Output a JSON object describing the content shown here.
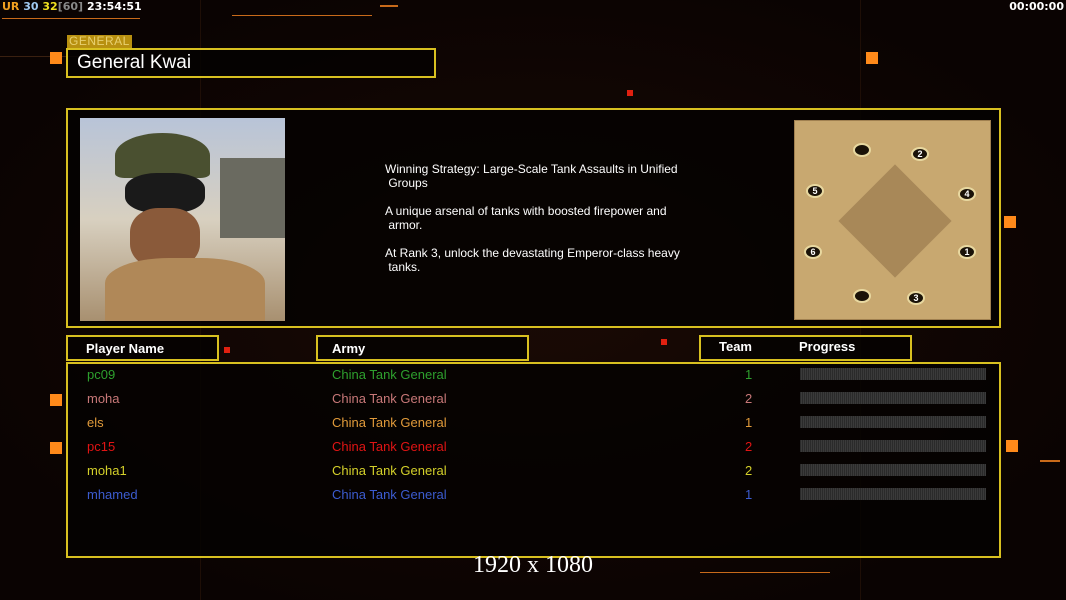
{
  "hud": {
    "ur": "UR",
    "fps1": "30",
    "fps2": "32",
    "fps_cap": "[60]",
    "time": "23:54:51",
    "timer": "00:00:00"
  },
  "general": {
    "tag": "GENERAL",
    "name": "General Kwai",
    "description": [
      "Winning Strategy: Large-Scale Tank Assaults in Unified\n Groups",
      "A unique arsenal of tanks with boosted firepower and\n armor.",
      "At Rank 3, unlock the devastating Emperor-class heavy\n tanks."
    ]
  },
  "map": {
    "spots": [
      "1",
      "2",
      "3",
      "4",
      "5",
      "6"
    ]
  },
  "table": {
    "headers": {
      "player": "Player Name",
      "army": "Army",
      "team": "Team",
      "progress": "Progress"
    },
    "rows": [
      {
        "name": "pc09",
        "army": "China Tank General",
        "team": "1",
        "color": "#2ea02e",
        "progress": 0
      },
      {
        "name": "moha",
        "army": "China Tank General",
        "team": "2",
        "color": "#c87878",
        "progress": 0
      },
      {
        "name": "els",
        "army": "China Tank General",
        "team": "1",
        "color": "#e09a3a",
        "progress": 0
      },
      {
        "name": "pc15",
        "army": "China Tank General",
        "team": "2",
        "color": "#e01414",
        "progress": 0
      },
      {
        "name": "moha1",
        "army": "China Tank General",
        "team": "2",
        "color": "#d4d02a",
        "progress": 0
      },
      {
        "name": "mhamed",
        "army": "China Tank General",
        "team": "1",
        "color": "#3c5cd0",
        "progress": 0
      }
    ]
  },
  "resolution": "1920 x 1080"
}
